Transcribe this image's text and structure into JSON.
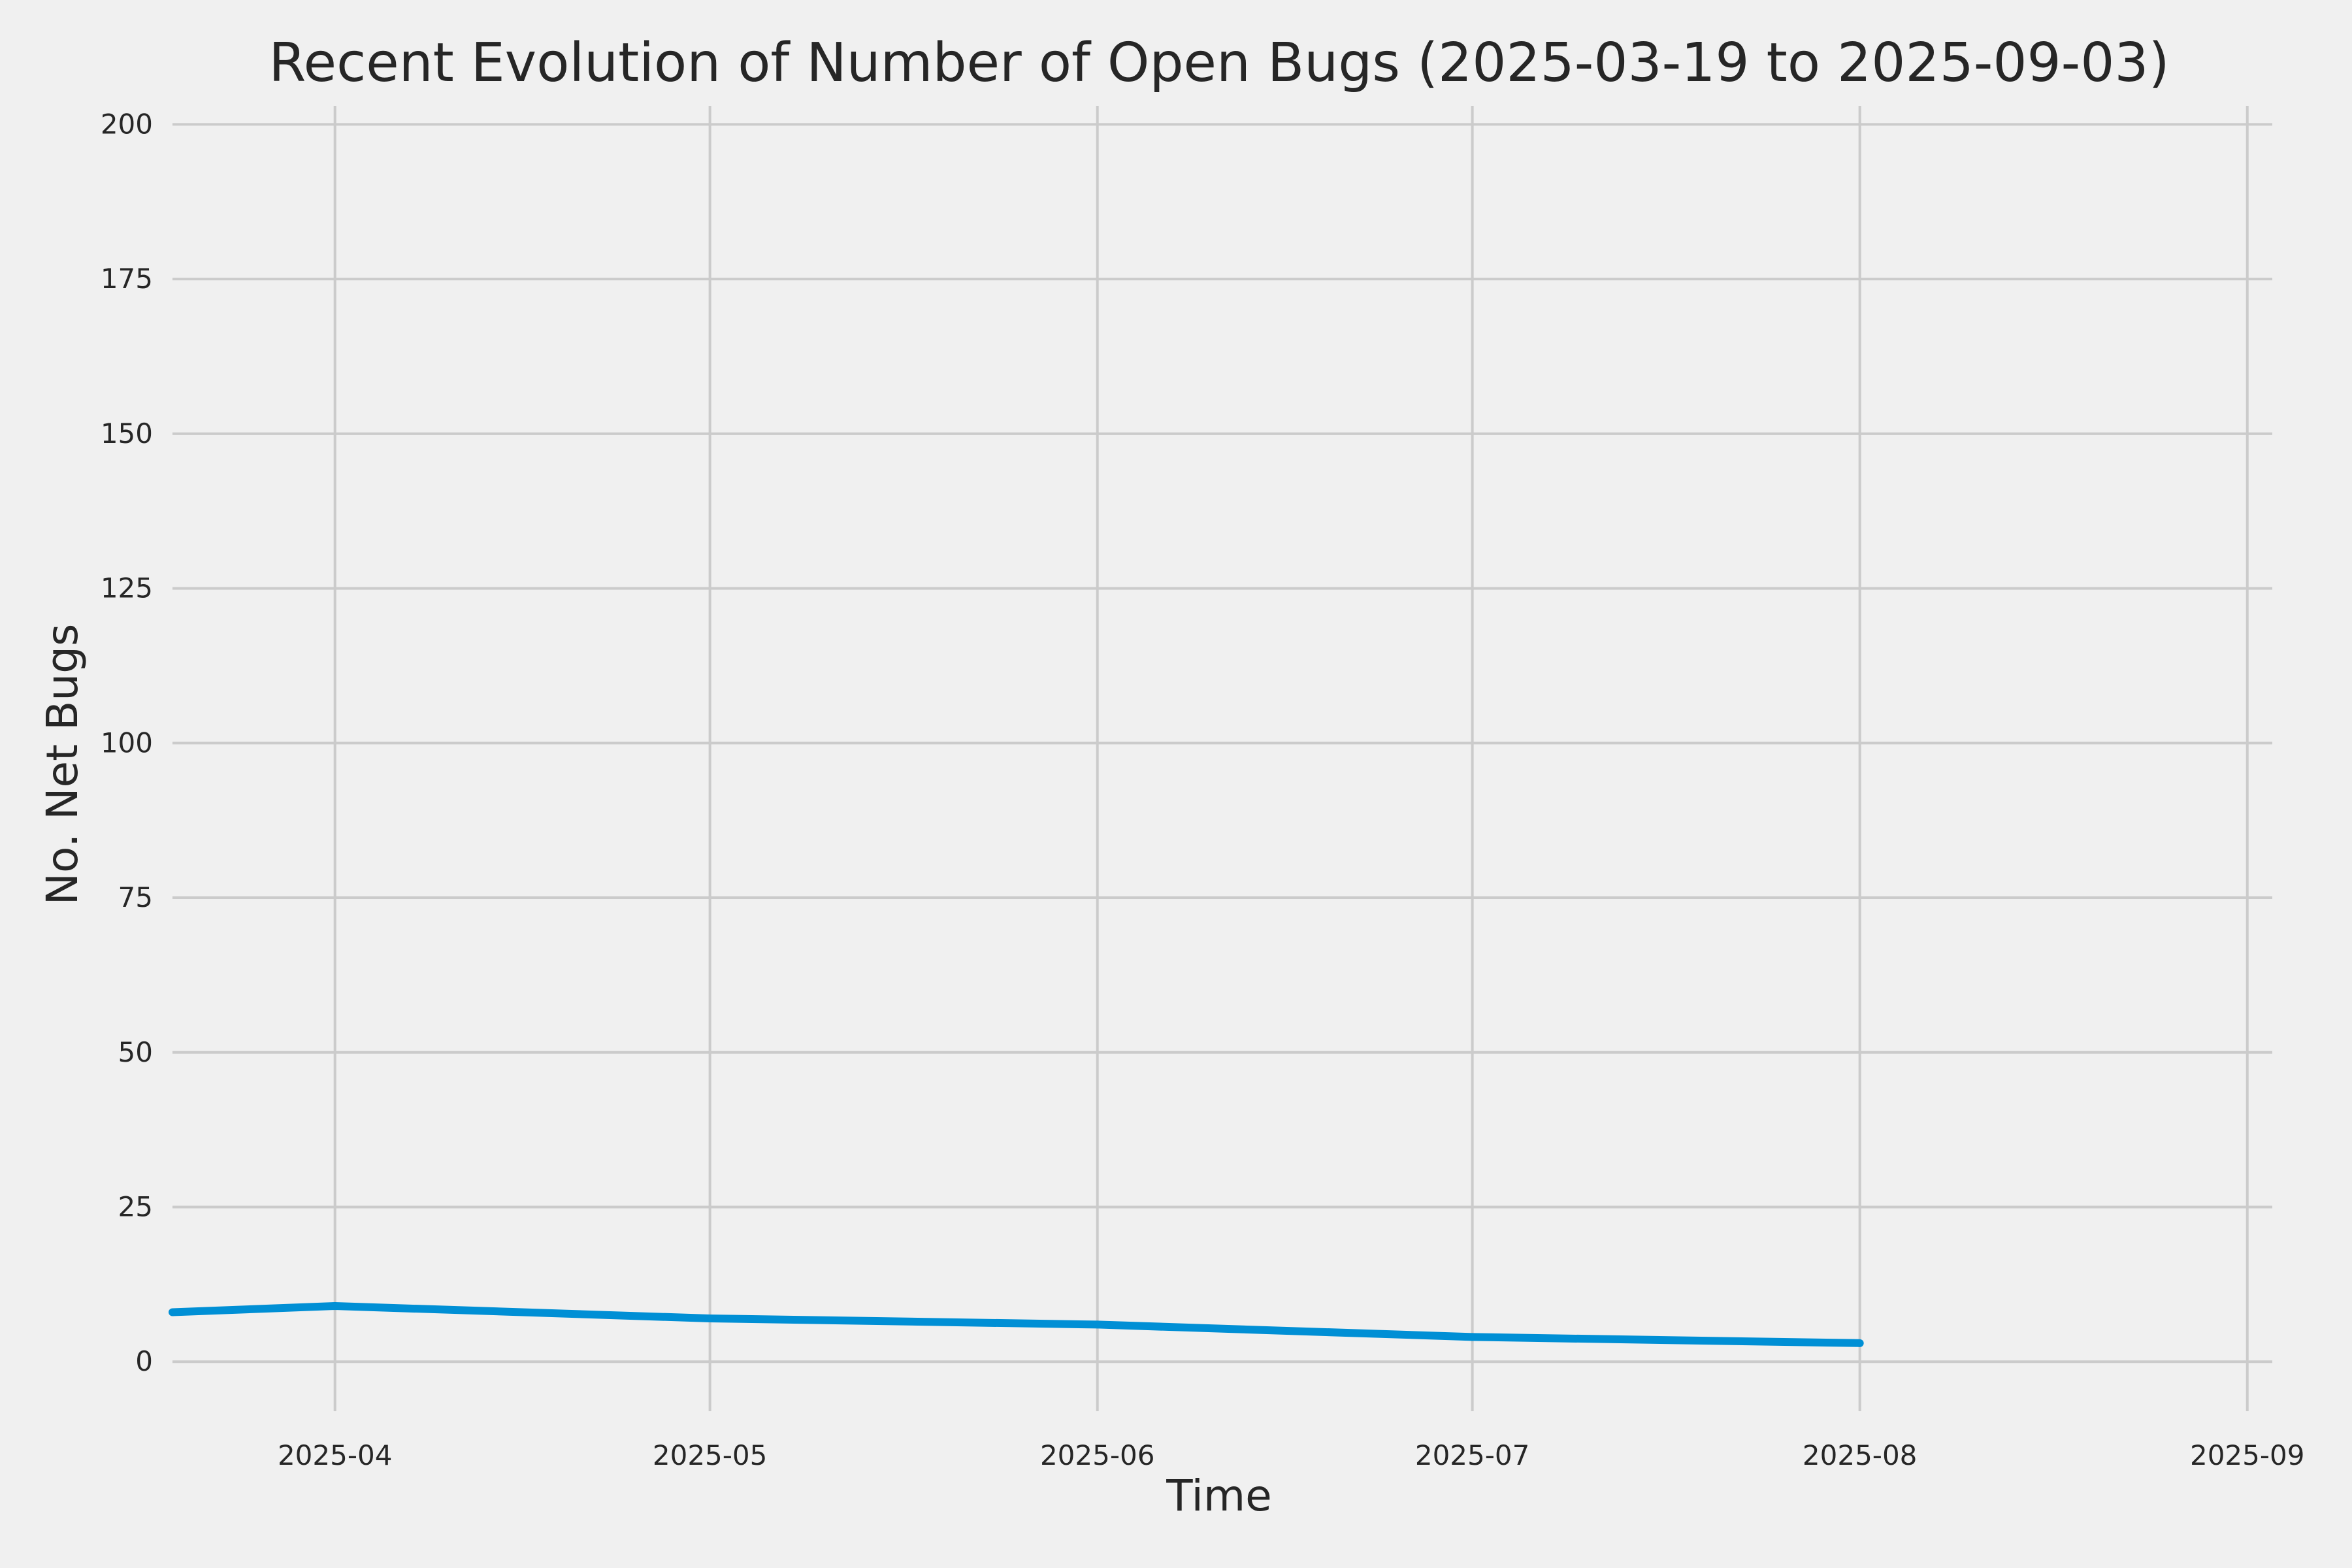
{
  "chart_data": {
    "type": "line",
    "title": "Recent Evolution of Number of Open Bugs (2025-03-19 to 2025-09-03)",
    "xlabel": "Time",
    "ylabel": "No. Net Bugs",
    "xlim": [
      "2025-03-19",
      "2025-09-03"
    ],
    "ylim": [
      -8,
      203
    ],
    "grid": true,
    "legend": "none",
    "x_ticks": [
      "2025-04",
      "2025-05",
      "2025-06",
      "2025-07",
      "2025-08",
      "2025-09"
    ],
    "y_ticks": [
      0,
      25,
      50,
      75,
      100,
      125,
      150,
      175,
      200
    ],
    "series": [
      {
        "color": "#008fd5",
        "x": [
          "2025-03-19",
          "2025-04-01",
          "2025-05-01",
          "2025-06-01",
          "2025-07-01",
          "2025-08-01"
        ],
        "y": [
          8,
          9,
          7,
          6,
          4,
          3
        ]
      }
    ]
  },
  "colors": {
    "background": "#f0f0f0",
    "grid": "#cbcbcb",
    "text": "#262626",
    "line": "#008fd5"
  }
}
